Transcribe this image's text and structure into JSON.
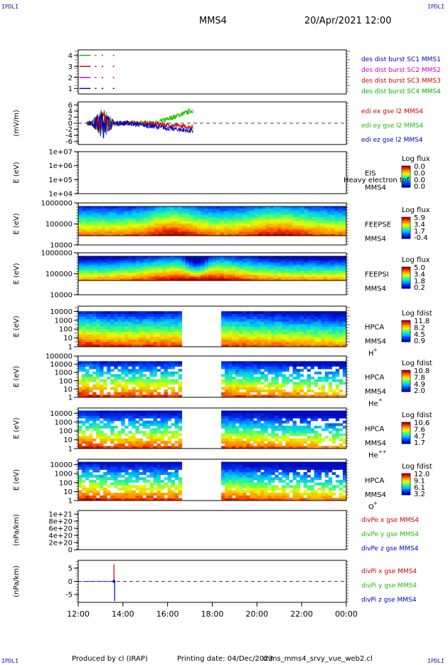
{
  "header": {
    "corner_tl": "IPDLI",
    "corner_tr": "IPDLI",
    "corner_bl": "IPDLI",
    "corner_br": "IPDLI",
    "spacecraft": "MMS4",
    "datetime": "20/Apr/2021 12:00"
  },
  "footer": {
    "producer": "Produced by cl (IRAP)",
    "printing_date": "Printing date: 04/Dec/2023",
    "script_name": "mms_mms4_srvy_vue_web2.cl"
  },
  "colors": {
    "sc1": "#0000c8",
    "sc2": "#c800c8",
    "sc3": "#c80000",
    "sc4": "#00b400",
    "x_comp": "#cc0000",
    "y_comp": "#22bb00",
    "z_comp": "#0000cc"
  },
  "chart_data": [
    {
      "type": "line",
      "panel": "burst",
      "yticks": [
        "1",
        "2",
        "3",
        "4"
      ],
      "ylim": [
        0.5,
        4.5
      ],
      "legend": [
        "des dist burst SC1 MMS1",
        "des dist burst SC2 MMS2",
        "des dist burst SC3 MMS3",
        "des dist burst SC4 MMS4"
      ]
    },
    {
      "type": "line",
      "panel": "edi",
      "ylabel": "(mV/m)",
      "yticks": [
        "-6",
        "-4",
        "-2",
        "0",
        "2",
        "4",
        "6"
      ],
      "ylim": [
        -7,
        7
      ],
      "legend": [
        "edi ex gse l2 MMS4",
        "edi ey gse l2 MMS4",
        "edi ez gse l2 MMS4"
      ]
    },
    {
      "type": "heatmap",
      "panel": "eis",
      "ylabel": "E (eV)",
      "yticks": [
        "1e+04",
        "1e+05",
        "1e+06",
        "1e+07"
      ],
      "ylim": [
        10000,
        10000000
      ],
      "instrument": [
        "EIS",
        "MMS4"
      ],
      "overlay_text": "Heavy electron tof",
      "cbar_title": "Log flux",
      "cbar_ticks": [
        "0.0",
        "0.0",
        "0.0",
        "0.0"
      ]
    },
    {
      "type": "heatmap",
      "panel": "feeps_e",
      "ylabel": "E (eV)",
      "yticks": [
        "10000",
        "100000",
        "1000000"
      ],
      "ylim": [
        10000,
        1000000
      ],
      "instrument": [
        "FEEPSE",
        "MMS4"
      ],
      "cbar_title": "Log flux",
      "cbar_ticks": [
        "5.9",
        "3.4",
        "1.7",
        "-0.4"
      ]
    },
    {
      "type": "heatmap",
      "panel": "feeps_i",
      "ylabel": "E (eV)",
      "yticks": [
        "10000",
        "100000",
        "1000000"
      ],
      "ylim": [
        10000,
        1000000
      ],
      "instrument": [
        "FEEPSI",
        "MMS4"
      ],
      "cbar_title": "Log flux",
      "cbar_ticks": [
        "5.0",
        "3.4",
        "1.8",
        "0.2"
      ]
    },
    {
      "type": "heatmap",
      "panel": "hpca_h",
      "ylabel": "E (eV)",
      "yticks": [
        "1",
        "10",
        "100",
        "1000",
        "10000"
      ],
      "ylim": [
        1,
        40000
      ],
      "instrument": [
        "HPCA",
        "MMS4"
      ],
      "species": "H",
      "species_sup": "+",
      "cbar_title": "Log fdist",
      "cbar_ticks": [
        "11.8",
        "8.2",
        "4.5",
        "0.9"
      ]
    },
    {
      "type": "heatmap",
      "panel": "hpca_he1",
      "ylabel": "E (eV)",
      "yticks": [
        "1",
        "10",
        "100",
        "1000",
        "10000",
        "100000"
      ],
      "ylim": [
        1,
        100000
      ],
      "instrument": [
        "HPCA",
        "MMS4"
      ],
      "species": "He",
      "species_sup": "+",
      "cbar_title": "Log fdist",
      "cbar_ticks": [
        "10.8",
        "7.8",
        "4.9",
        "2.0"
      ]
    },
    {
      "type": "heatmap",
      "panel": "hpca_he2",
      "ylabel": "E (eV)",
      "yticks": [
        "1",
        "10",
        "100",
        "1000",
        "10000"
      ],
      "ylim": [
        1,
        40000
      ],
      "instrument": [
        "HPCA",
        "MMS4"
      ],
      "species": "He",
      "species_sup": "++",
      "cbar_title": "Log fdist",
      "cbar_ticks": [
        "10.6",
        "7.6",
        "4.7",
        "1.7"
      ]
    },
    {
      "type": "heatmap",
      "panel": "hpca_o",
      "ylabel": "E (eV)",
      "yticks": [
        "1",
        "10",
        "100",
        "1000",
        "10000"
      ],
      "ylim": [
        1,
        40000
      ],
      "instrument": [
        "HPCA",
        "MMS4"
      ],
      "species": "O",
      "species_sup": "+",
      "cbar_title": "Log fdist",
      "cbar_ticks": [
        "12.0",
        "9.1",
        "6.1",
        "3.2"
      ]
    },
    {
      "type": "line",
      "panel": "divpe",
      "ylabel": "(nPa/km)",
      "yticks": [
        "0",
        "2e+20",
        "4e+20",
        "6e+20",
        "8e+20",
        "1e+21"
      ],
      "ylim": [
        0,
        1.1e+21
      ],
      "legend": [
        "divPe x gse MMS4",
        "divPe y gse MMS4",
        "divPe z gse MMS4"
      ]
    },
    {
      "type": "line",
      "panel": "divpi",
      "ylabel": "(nPa/km)",
      "yticks": [
        "-5",
        "0",
        "5"
      ],
      "ylim": [
        -8,
        8
      ],
      "legend": [
        "divPi x gse MMS4",
        "divPi y gse MMS4",
        "divPi z gse MMS4"
      ]
    }
  ],
  "xaxis": {
    "ticks": [
      "12:00",
      "14:00",
      "16:00",
      "18:00",
      "20:00",
      "22:00",
      "00:00"
    ],
    "xlim": [
      12,
      24
    ]
  }
}
